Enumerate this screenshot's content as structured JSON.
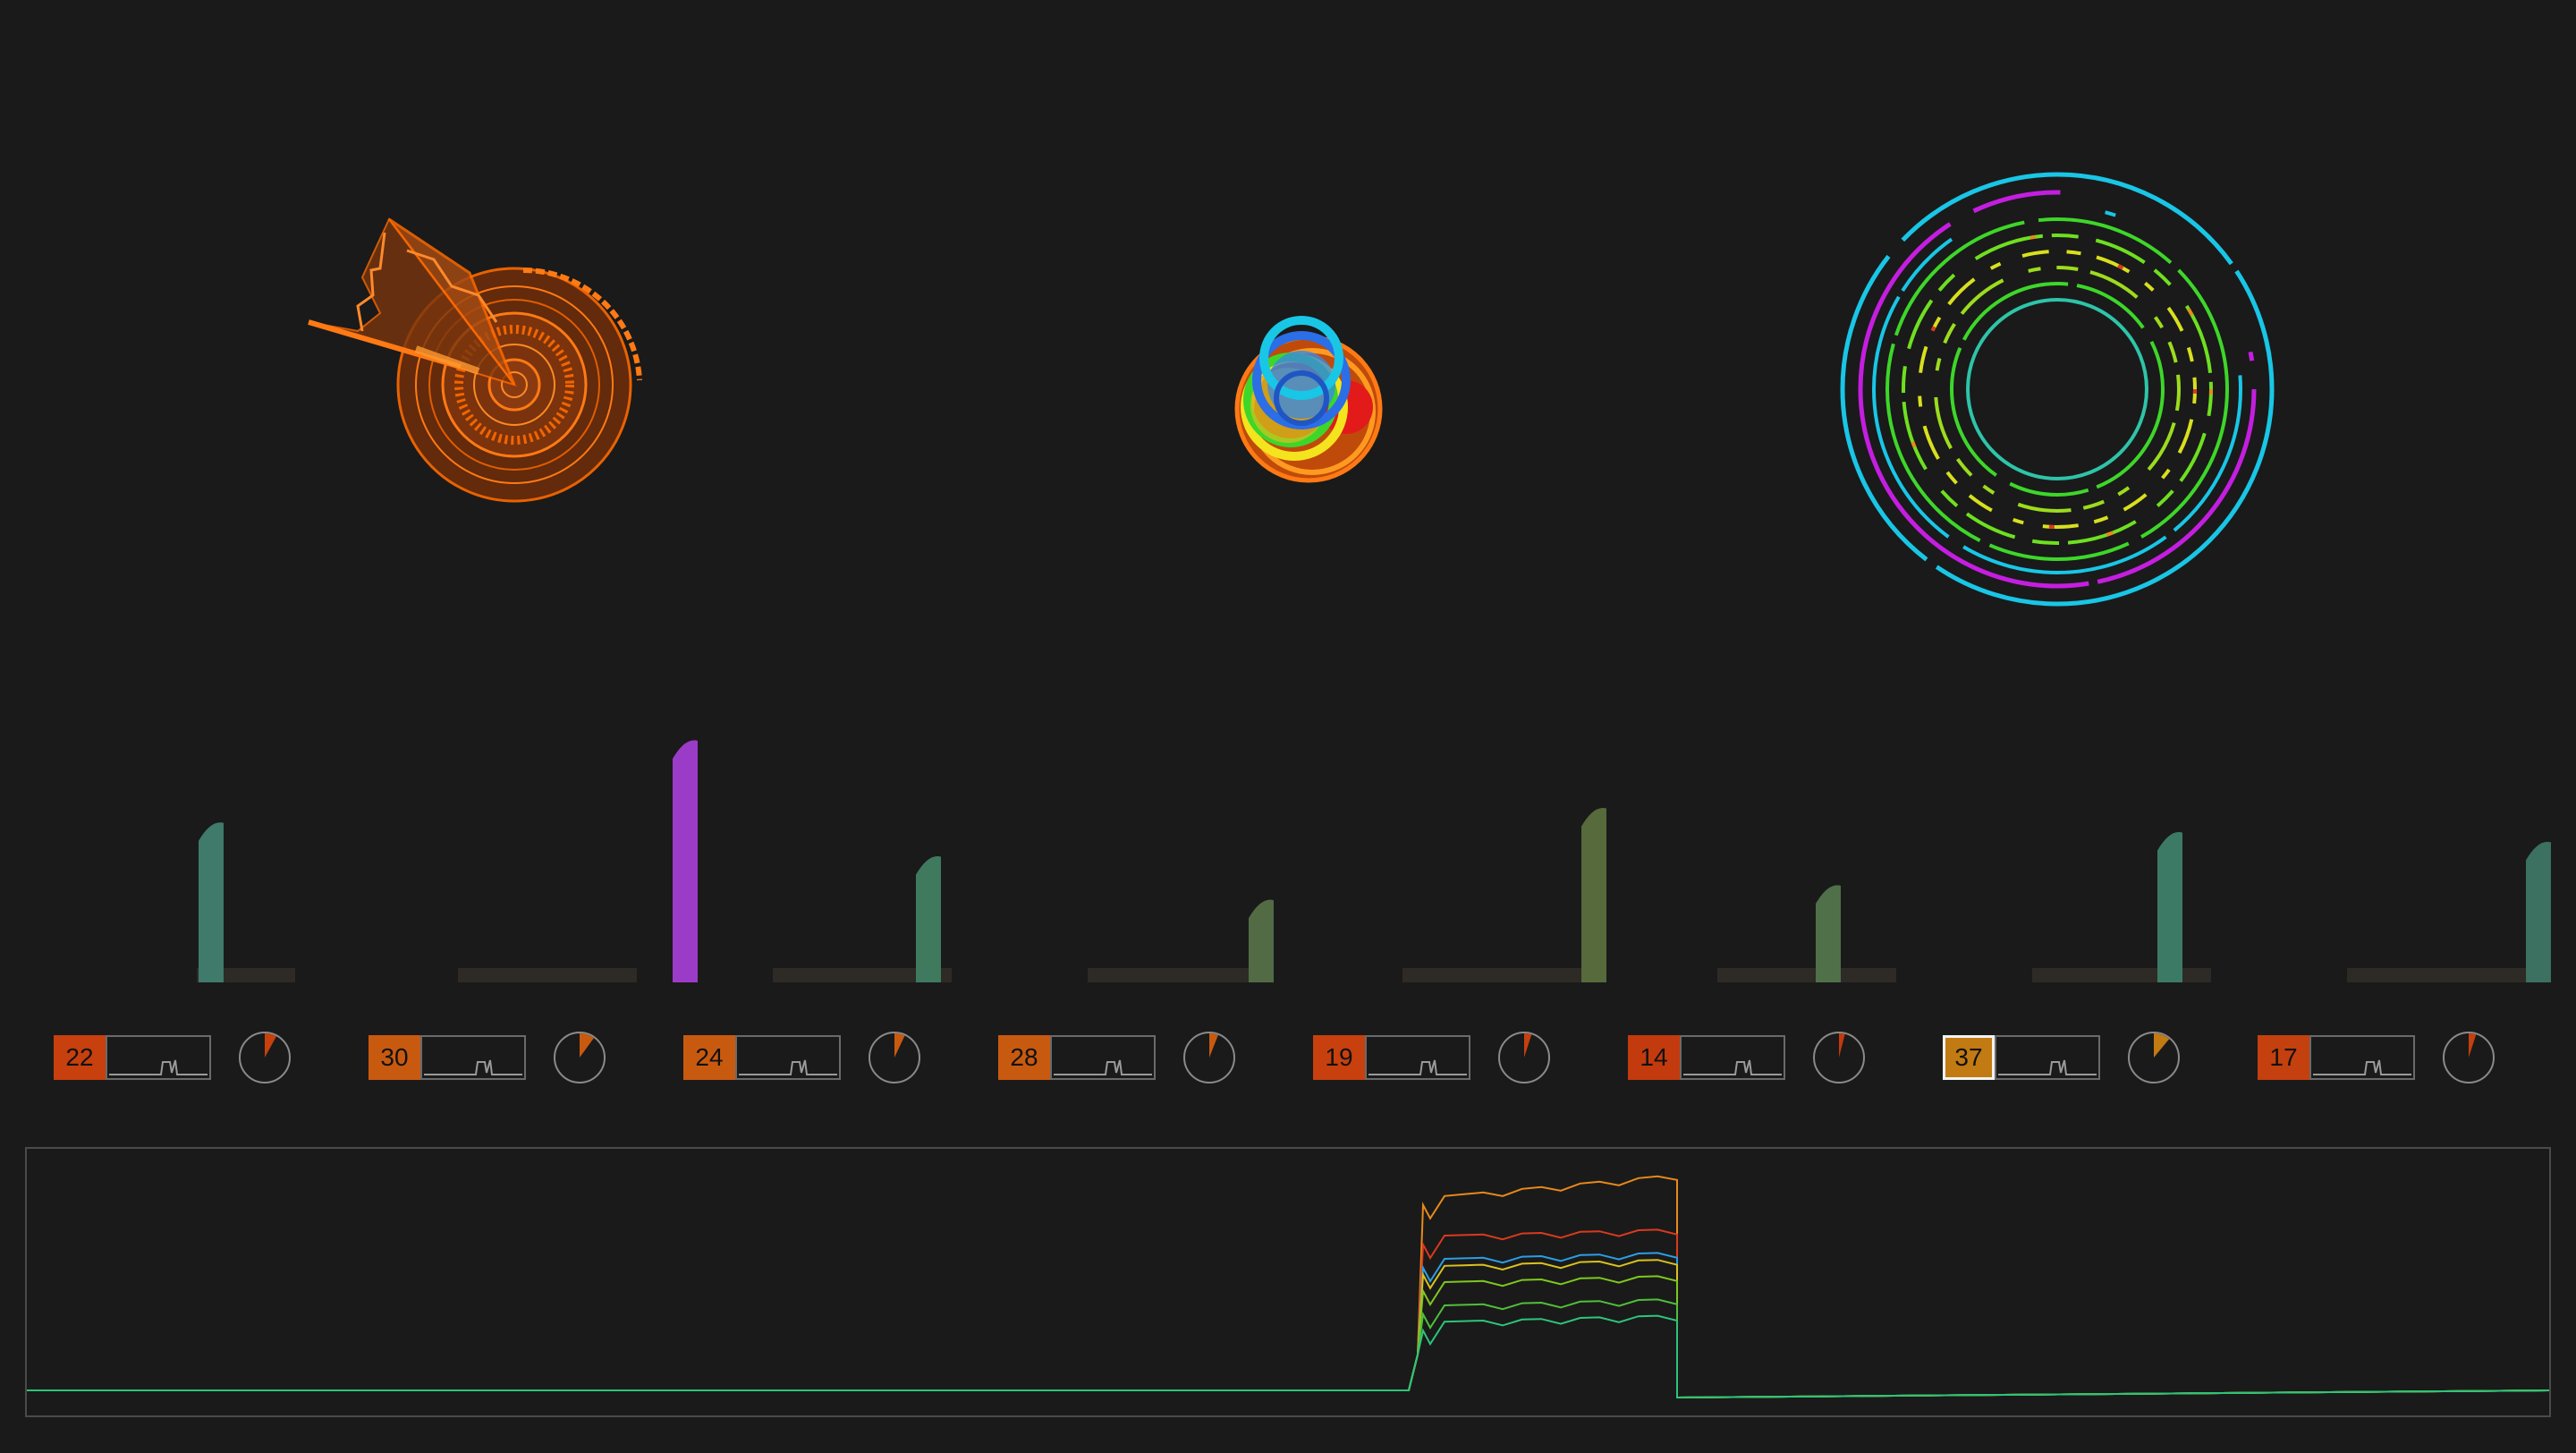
{
  "colors": {
    "background": "#1a1a1a",
    "orange": "#ff6a00",
    "cyan": "#19c6e6",
    "magenta": "#c41ee0",
    "green": "#3ed62a",
    "timeline_border": "#4a4a4a"
  },
  "channels": [
    {
      "value": "22",
      "color": "#c7400e",
      "selected": false,
      "pie_fraction": 0.08,
      "bar_level": 0.66,
      "bar_color": "#3f7a6a"
    },
    {
      "value": "30",
      "color": "#c85a10",
      "selected": false,
      "pie_fraction": 0.1,
      "bar_level": 1.0,
      "bar_color": "#9b3cc8"
    },
    {
      "value": "24",
      "color": "#c85a10",
      "selected": false,
      "pie_fraction": 0.07,
      "bar_level": 0.52,
      "bar_color": "#3f7a5e"
    },
    {
      "value": "28",
      "color": "#c85a10",
      "selected": false,
      "pie_fraction": 0.06,
      "bar_level": 0.34,
      "bar_color": "#526b45"
    },
    {
      "value": "19",
      "color": "#c7400e",
      "selected": false,
      "pie_fraction": 0.05,
      "bar_level": 0.72,
      "bar_color": "#566a3c"
    },
    {
      "value": "14",
      "color": "#c23a0e",
      "selected": false,
      "pie_fraction": 0.04,
      "bar_level": 0.4,
      "bar_color": "#4f7048"
    },
    {
      "value": "37",
      "color": "#c27a12",
      "selected": true,
      "pie_fraction": 0.11,
      "bar_level": 0.62,
      "bar_color": "#3c7a66"
    },
    {
      "value": "17",
      "color": "#c4400e",
      "selected": false,
      "pie_fraction": 0.05,
      "bar_level": 0.58,
      "bar_color": "#3c7060"
    }
  ],
  "timeline": {
    "series_colors": [
      "#e8891a",
      "#d93a1e",
      "#2b9ee6",
      "#d8c21e",
      "#7ec81f",
      "#4fbf3a",
      "#2ec47a"
    ],
    "series_levels": [
      0.72,
      0.55,
      0.45,
      0.42,
      0.35,
      0.25,
      0.18
    ]
  }
}
